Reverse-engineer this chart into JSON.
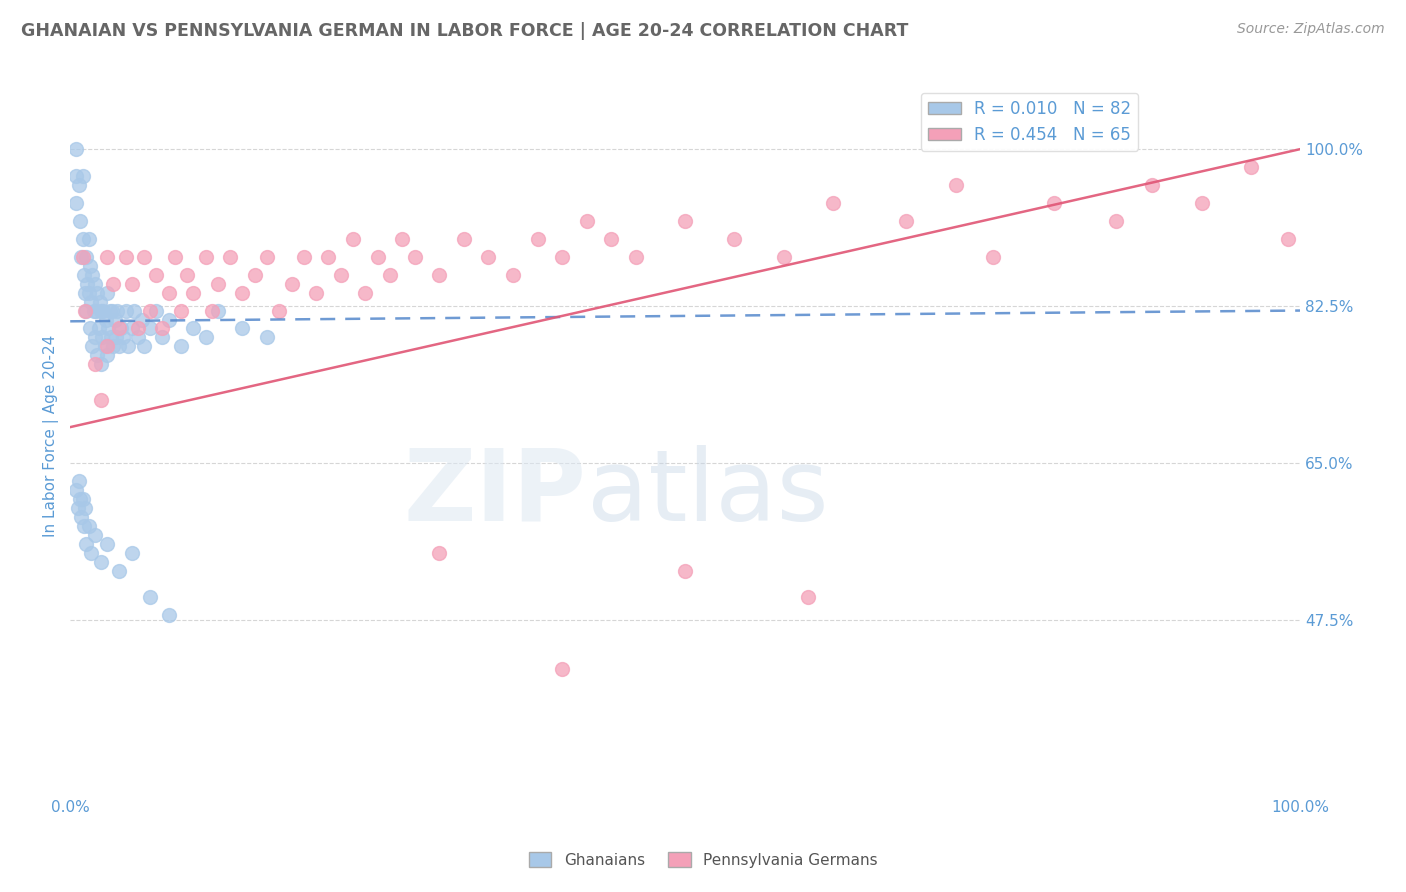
{
  "title": "GHANAIAN VS PENNSYLVANIA GERMAN IN LABOR FORCE | AGE 20-24 CORRELATION CHART",
  "source": "Source: ZipAtlas.com",
  "ylabel": "In Labor Force | Age 20-24",
  "legend_labels": [
    "Ghanaians",
    "Pennsylvania Germans"
  ],
  "R_blue": 0.01,
  "N_blue": 82,
  "R_pink": 0.454,
  "N_pink": 65,
  "blue_color": "#a8c8e8",
  "pink_color": "#f4a0b8",
  "blue_trend_color": "#5588cc",
  "pink_trend_color": "#e05575",
  "axis_label_color": "#5b9bd5",
  "right_ytick_labels": [
    "47.5%",
    "65.0%",
    "82.5%",
    "100.0%"
  ],
  "right_ytick_values": [
    0.475,
    0.65,
    0.825,
    1.0
  ],
  "xlim": [
    0.0,
    1.0
  ],
  "ylim": [
    0.28,
    1.08
  ],
  "blue_trend_start_y": 0.808,
  "blue_trend_end_y": 0.82,
  "pink_trend_start_y": 0.69,
  "pink_trend_end_y": 1.0,
  "blue_scatter_x": [
    0.005,
    0.005,
    0.005,
    0.007,
    0.008,
    0.009,
    0.01,
    0.01,
    0.011,
    0.012,
    0.013,
    0.013,
    0.014,
    0.015,
    0.015,
    0.016,
    0.016,
    0.017,
    0.018,
    0.018,
    0.019,
    0.02,
    0.02,
    0.021,
    0.022,
    0.022,
    0.023,
    0.024,
    0.025,
    0.025,
    0.026,
    0.027,
    0.028,
    0.029,
    0.03,
    0.03,
    0.031,
    0.032,
    0.033,
    0.034,
    0.035,
    0.036,
    0.037,
    0.038,
    0.04,
    0.041,
    0.043,
    0.045,
    0.047,
    0.05,
    0.052,
    0.055,
    0.058,
    0.06,
    0.065,
    0.07,
    0.075,
    0.08,
    0.09,
    0.1,
    0.11,
    0.12,
    0.14,
    0.16,
    0.005,
    0.006,
    0.007,
    0.008,
    0.009,
    0.01,
    0.011,
    0.012,
    0.013,
    0.015,
    0.017,
    0.02,
    0.025,
    0.03,
    0.04,
    0.05,
    0.065,
    0.08
  ],
  "blue_scatter_y": [
    1.0,
    0.97,
    0.94,
    0.96,
    0.92,
    0.88,
    0.97,
    0.9,
    0.86,
    0.84,
    0.88,
    0.82,
    0.85,
    0.9,
    0.84,
    0.87,
    0.8,
    0.83,
    0.86,
    0.78,
    0.82,
    0.85,
    0.79,
    0.82,
    0.84,
    0.77,
    0.8,
    0.83,
    0.76,
    0.82,
    0.79,
    0.82,
    0.78,
    0.81,
    0.84,
    0.77,
    0.8,
    0.82,
    0.79,
    0.82,
    0.78,
    0.81,
    0.79,
    0.82,
    0.78,
    0.8,
    0.79,
    0.82,
    0.78,
    0.8,
    0.82,
    0.79,
    0.81,
    0.78,
    0.8,
    0.82,
    0.79,
    0.81,
    0.78,
    0.8,
    0.79,
    0.82,
    0.8,
    0.79,
    0.62,
    0.6,
    0.63,
    0.61,
    0.59,
    0.61,
    0.58,
    0.6,
    0.56,
    0.58,
    0.55,
    0.57,
    0.54,
    0.56,
    0.53,
    0.55,
    0.5,
    0.48
  ],
  "pink_scatter_x": [
    0.01,
    0.012,
    0.02,
    0.025,
    0.03,
    0.03,
    0.035,
    0.04,
    0.045,
    0.05,
    0.055,
    0.06,
    0.065,
    0.07,
    0.075,
    0.08,
    0.085,
    0.09,
    0.095,
    0.1,
    0.11,
    0.115,
    0.12,
    0.13,
    0.14,
    0.15,
    0.16,
    0.17,
    0.18,
    0.19,
    0.2,
    0.21,
    0.22,
    0.23,
    0.24,
    0.25,
    0.26,
    0.27,
    0.28,
    0.3,
    0.32,
    0.34,
    0.36,
    0.38,
    0.4,
    0.42,
    0.44,
    0.46,
    0.5,
    0.54,
    0.58,
    0.62,
    0.68,
    0.72,
    0.75,
    0.8,
    0.85,
    0.88,
    0.92,
    0.96,
    0.99,
    0.3,
    0.5,
    0.6,
    0.4
  ],
  "pink_scatter_y": [
    0.88,
    0.82,
    0.76,
    0.72,
    0.88,
    0.78,
    0.85,
    0.8,
    0.88,
    0.85,
    0.8,
    0.88,
    0.82,
    0.86,
    0.8,
    0.84,
    0.88,
    0.82,
    0.86,
    0.84,
    0.88,
    0.82,
    0.85,
    0.88,
    0.84,
    0.86,
    0.88,
    0.82,
    0.85,
    0.88,
    0.84,
    0.88,
    0.86,
    0.9,
    0.84,
    0.88,
    0.86,
    0.9,
    0.88,
    0.86,
    0.9,
    0.88,
    0.86,
    0.9,
    0.88,
    0.92,
    0.9,
    0.88,
    0.92,
    0.9,
    0.88,
    0.94,
    0.92,
    0.96,
    0.88,
    0.94,
    0.92,
    0.96,
    0.94,
    0.98,
    0.9,
    0.55,
    0.53,
    0.5,
    0.42
  ]
}
